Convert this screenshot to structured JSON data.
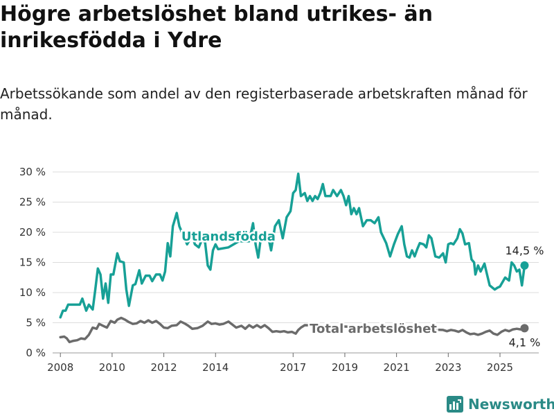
{
  "header": {
    "title": "Högre arbetslöshet bland utrikes- än inrikesfödda i Ydre",
    "subtitle": "Arbetssökande som andel av den registerbaserade arbetskraften månad för månad."
  },
  "brand": {
    "name": "Newsworthy"
  },
  "chart_data": {
    "type": "line",
    "title": "Högre arbetslöshet bland utrikes- än inrikesfödda i Ydre",
    "subtitle": "Arbetssökande som andel av den registerbaserade arbetskraften månad för månad.",
    "xlim": [
      2007.7,
      2026.5
    ],
    "ylim": [
      0,
      30
    ],
    "grid": true,
    "x_ticks": [
      2008,
      2010,
      2012,
      2014,
      2017,
      2019,
      2021,
      2023,
      2025
    ],
    "x_tick_labels": [
      "2008",
      "2010",
      "2012",
      "2014",
      "2017",
      "2019",
      "2021",
      "2023",
      "2025"
    ],
    "y_ticks": [
      0,
      5,
      10,
      15,
      20,
      25,
      30
    ],
    "y_tick_labels": [
      "0 %",
      "5 %",
      "10 %",
      "15 %",
      "20 %",
      "25 %",
      "30 %"
    ],
    "series": [
      {
        "name": "Utlandsfödda",
        "color": "#17a096",
        "end_label": "14,5 %",
        "points": [
          [
            2008.0,
            5.9
          ],
          [
            2008.1,
            7.0
          ],
          [
            2008.2,
            7.0
          ],
          [
            2008.3,
            8.0
          ],
          [
            2008.5,
            8.0
          ],
          [
            2008.6,
            8.0
          ],
          [
            2008.75,
            8.0
          ],
          [
            2008.85,
            9.0
          ],
          [
            2009.0,
            7.0
          ],
          [
            2009.1,
            8.0
          ],
          [
            2009.25,
            7.2
          ],
          [
            2009.35,
            10.5
          ],
          [
            2009.45,
            14.0
          ],
          [
            2009.55,
            13.0
          ],
          [
            2009.65,
            9.0
          ],
          [
            2009.75,
            11.5
          ],
          [
            2009.85,
            8.3
          ],
          [
            2009.95,
            13.0
          ],
          [
            2010.05,
            13.0
          ],
          [
            2010.2,
            16.5
          ],
          [
            2010.3,
            15.2
          ],
          [
            2010.45,
            15.0
          ],
          [
            2010.55,
            10.5
          ],
          [
            2010.65,
            7.8
          ],
          [
            2010.8,
            11.2
          ],
          [
            2010.9,
            11.4
          ],
          [
            2011.05,
            13.7
          ],
          [
            2011.15,
            11.5
          ],
          [
            2011.3,
            12.8
          ],
          [
            2011.45,
            12.8
          ],
          [
            2011.55,
            11.9
          ],
          [
            2011.7,
            13.0
          ],
          [
            2011.85,
            13.0
          ],
          [
            2011.95,
            12.0
          ],
          [
            2012.05,
            13.5
          ],
          [
            2012.15,
            18.2
          ],
          [
            2012.25,
            16.0
          ],
          [
            2012.35,
            21.0
          ],
          [
            2012.5,
            23.2
          ],
          [
            2012.6,
            21.0
          ],
          [
            2012.75,
            19.5
          ],
          [
            2012.9,
            18.0
          ],
          [
            2013.1,
            19.5
          ],
          [
            2013.2,
            18.0
          ],
          [
            2013.35,
            17.5
          ],
          [
            2013.5,
            19.0
          ],
          [
            2013.6,
            18.2
          ],
          [
            2013.7,
            14.5
          ],
          [
            2013.8,
            13.8
          ],
          [
            2013.9,
            17.0
          ],
          [
            2014.0,
            18.0
          ],
          [
            2014.1,
            17.2
          ],
          [
            2014.5,
            17.5
          ],
          [
            2014.9,
            18.5
          ],
          [
            2015.3,
            18.5
          ],
          [
            2015.45,
            21.5
          ],
          [
            2015.55,
            18.0
          ],
          [
            2015.65,
            15.8
          ],
          [
            2015.75,
            19.0
          ],
          [
            2015.9,
            19.5
          ],
          [
            2016.05,
            19.0
          ],
          [
            2016.15,
            17.0
          ],
          [
            2016.3,
            21.0
          ],
          [
            2016.45,
            22.0
          ],
          [
            2016.6,
            19.0
          ],
          [
            2016.75,
            22.5
          ],
          [
            2016.9,
            23.5
          ],
          [
            2017.0,
            26.5
          ],
          [
            2017.1,
            27.0
          ],
          [
            2017.2,
            29.7
          ],
          [
            2017.3,
            26.0
          ],
          [
            2017.45,
            26.5
          ],
          [
            2017.55,
            25.2
          ],
          [
            2017.65,
            26.0
          ],
          [
            2017.75,
            25.2
          ],
          [
            2017.85,
            26.0
          ],
          [
            2017.95,
            25.5
          ],
          [
            2018.05,
            26.5
          ],
          [
            2018.15,
            28.0
          ],
          [
            2018.25,
            26.0
          ],
          [
            2018.45,
            26.0
          ],
          [
            2018.55,
            27.0
          ],
          [
            2018.7,
            26.0
          ],
          [
            2018.85,
            27.0
          ],
          [
            2018.95,
            26.0
          ],
          [
            2019.05,
            24.5
          ],
          [
            2019.15,
            26.0
          ],
          [
            2019.25,
            23.0
          ],
          [
            2019.35,
            24.0
          ],
          [
            2019.45,
            23.0
          ],
          [
            2019.55,
            24.0
          ],
          [
            2019.7,
            21.0
          ],
          [
            2019.85,
            22.0
          ],
          [
            2020.0,
            22.0
          ],
          [
            2020.15,
            21.5
          ],
          [
            2020.3,
            22.5
          ],
          [
            2020.4,
            20.0
          ],
          [
            2020.6,
            18.2
          ],
          [
            2020.75,
            16.0
          ],
          [
            2020.9,
            18.0
          ],
          [
            2021.05,
            19.7
          ],
          [
            2021.2,
            21.0
          ],
          [
            2021.3,
            18.0
          ],
          [
            2021.4,
            16.0
          ],
          [
            2021.5,
            15.8
          ],
          [
            2021.6,
            17.0
          ],
          [
            2021.7,
            16.0
          ],
          [
            2021.8,
            17.2
          ],
          [
            2021.9,
            18.2
          ],
          [
            2022.05,
            18.0
          ],
          [
            2022.15,
            17.5
          ],
          [
            2022.25,
            19.5
          ],
          [
            2022.35,
            19.0
          ],
          [
            2022.5,
            16.0
          ],
          [
            2022.65,
            15.8
          ],
          [
            2022.8,
            16.5
          ],
          [
            2022.9,
            15.0
          ],
          [
            2023.0,
            18.0
          ],
          [
            2023.1,
            18.2
          ],
          [
            2023.2,
            18.0
          ],
          [
            2023.35,
            19.0
          ],
          [
            2023.45,
            20.5
          ],
          [
            2023.55,
            19.8
          ],
          [
            2023.65,
            18.0
          ],
          [
            2023.8,
            18.2
          ],
          [
            2023.9,
            15.5
          ],
          [
            2024.0,
            15.0
          ],
          [
            2024.05,
            13.0
          ],
          [
            2024.15,
            14.5
          ],
          [
            2024.25,
            13.5
          ],
          [
            2024.4,
            14.8
          ],
          [
            2024.5,
            13.0
          ],
          [
            2024.6,
            11.2
          ],
          [
            2024.8,
            10.5
          ],
          [
            2024.9,
            10.8
          ],
          [
            2025.0,
            11.0
          ],
          [
            2025.2,
            12.5
          ],
          [
            2025.35,
            12.0
          ],
          [
            2025.45,
            15.0
          ],
          [
            2025.55,
            14.5
          ],
          [
            2025.65,
            13.5
          ],
          [
            2025.75,
            13.8
          ],
          [
            2025.85,
            11.2
          ],
          [
            2025.95,
            14.5
          ]
        ]
      },
      {
        "name": "Total arbetslöshet",
        "color": "#6b6b6b",
        "end_label": "4,1 %",
        "points": [
          [
            2008.0,
            2.6
          ],
          [
            2008.15,
            2.7
          ],
          [
            2008.25,
            2.4
          ],
          [
            2008.35,
            1.8
          ],
          [
            2008.5,
            2.0
          ],
          [
            2008.65,
            2.1
          ],
          [
            2008.8,
            2.4
          ],
          [
            2008.95,
            2.3
          ],
          [
            2009.1,
            3.0
          ],
          [
            2009.25,
            4.2
          ],
          [
            2009.4,
            4.0
          ],
          [
            2009.5,
            4.8
          ],
          [
            2009.65,
            4.5
          ],
          [
            2009.8,
            4.2
          ],
          [
            2009.95,
            5.3
          ],
          [
            2010.1,
            5.0
          ],
          [
            2010.2,
            5.5
          ],
          [
            2010.35,
            5.8
          ],
          [
            2010.5,
            5.5
          ],
          [
            2010.65,
            5.1
          ],
          [
            2010.8,
            4.8
          ],
          [
            2010.95,
            4.9
          ],
          [
            2011.1,
            5.3
          ],
          [
            2011.25,
            5.0
          ],
          [
            2011.4,
            5.4
          ],
          [
            2011.55,
            5.0
          ],
          [
            2011.7,
            5.3
          ],
          [
            2011.85,
            4.8
          ],
          [
            2012.0,
            4.2
          ],
          [
            2012.15,
            4.1
          ],
          [
            2012.3,
            4.5
          ],
          [
            2012.5,
            4.6
          ],
          [
            2012.65,
            5.2
          ],
          [
            2012.8,
            4.9
          ],
          [
            2012.95,
            4.5
          ],
          [
            2013.1,
            4.0
          ],
          [
            2013.3,
            4.1
          ],
          [
            2013.5,
            4.5
          ],
          [
            2013.7,
            5.2
          ],
          [
            2013.85,
            4.8
          ],
          [
            2014.0,
            4.9
          ],
          [
            2014.15,
            4.7
          ],
          [
            2014.3,
            4.8
          ],
          [
            2014.5,
            5.2
          ],
          [
            2014.65,
            4.7
          ],
          [
            2014.8,
            4.2
          ],
          [
            2015.0,
            4.5
          ],
          [
            2015.15,
            4.0
          ],
          [
            2015.3,
            4.6
          ],
          [
            2015.45,
            4.2
          ],
          [
            2015.6,
            4.6
          ],
          [
            2015.75,
            4.2
          ],
          [
            2015.9,
            4.6
          ],
          [
            2016.05,
            4.1
          ],
          [
            2016.2,
            3.5
          ],
          [
            2016.35,
            3.6
          ],
          [
            2016.5,
            3.5
          ],
          [
            2016.65,
            3.6
          ],
          [
            2016.8,
            3.4
          ],
          [
            2016.95,
            3.5
          ],
          [
            2017.1,
            3.2
          ],
          [
            2017.2,
            3.8
          ],
          [
            2017.3,
            4.2
          ],
          [
            2017.45,
            4.6
          ],
          [
            2022.8,
            3.8
          ],
          [
            2022.95,
            3.6
          ],
          [
            2023.1,
            3.8
          ],
          [
            2023.25,
            3.7
          ],
          [
            2023.4,
            3.5
          ],
          [
            2023.55,
            3.8
          ],
          [
            2023.7,
            3.4
          ],
          [
            2023.85,
            3.1
          ],
          [
            2024.0,
            3.2
          ],
          [
            2024.15,
            3.0
          ],
          [
            2024.3,
            3.2
          ],
          [
            2024.45,
            3.5
          ],
          [
            2024.6,
            3.7
          ],
          [
            2024.75,
            3.2
          ],
          [
            2024.9,
            3.0
          ],
          [
            2025.05,
            3.5
          ],
          [
            2025.2,
            3.8
          ],
          [
            2025.35,
            3.6
          ],
          [
            2025.5,
            3.9
          ],
          [
            2025.65,
            4.0
          ],
          [
            2025.8,
            3.9
          ],
          [
            2025.95,
            4.1
          ]
        ]
      }
    ],
    "annotations": [
      {
        "text": "Utlandsfödda",
        "series": "Utlandsfödda",
        "x": 2014.5,
        "y": 19.3
      },
      {
        "text": "Total arbetslöshet",
        "series": "Total arbetslöshet",
        "x": 2020.1,
        "y": 4.0
      }
    ]
  }
}
